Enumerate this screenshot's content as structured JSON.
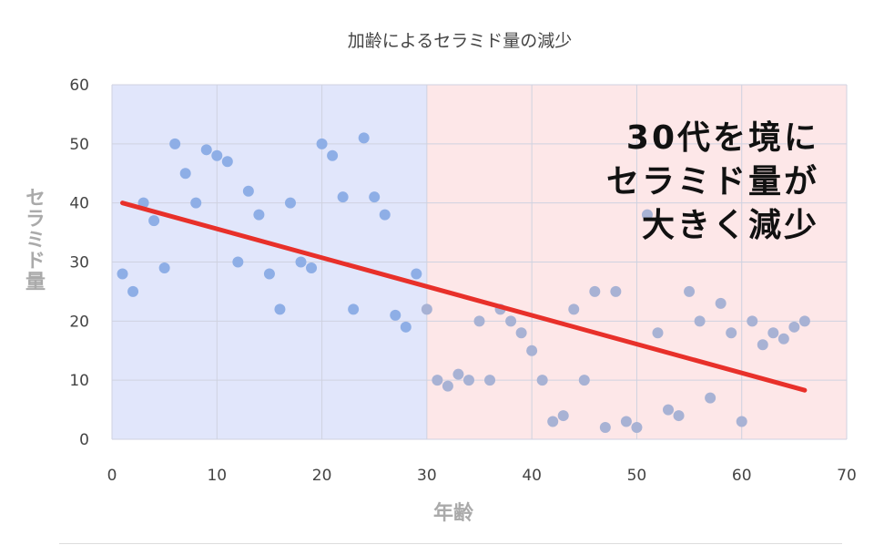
{
  "chart_data": {
    "type": "scatter",
    "title": "加齢によるセラミド量の減少",
    "xlabel": "年齢",
    "ylabel": "セラミド量",
    "xlim": [
      0,
      70
    ],
    "ylim": [
      0,
      60
    ],
    "xticks": [
      0,
      10,
      20,
      30,
      40,
      50,
      60,
      70
    ],
    "yticks": [
      0,
      10,
      20,
      30,
      40,
      50,
      60
    ],
    "grid": true,
    "x": [
      1,
      2,
      3,
      4,
      5,
      6,
      7,
      8,
      9,
      10,
      11,
      12,
      13,
      14,
      15,
      16,
      17,
      18,
      19,
      20,
      21,
      22,
      23,
      24,
      25,
      26,
      27,
      28,
      29,
      30,
      31,
      32,
      33,
      34,
      35,
      36,
      37,
      38,
      39,
      40,
      41,
      42,
      43,
      44,
      45,
      46,
      47,
      48,
      49,
      50,
      51,
      52,
      53,
      54,
      55,
      56,
      57,
      58,
      59,
      60,
      61,
      62,
      63,
      64,
      65,
      66
    ],
    "y": [
      28,
      25,
      40,
      37,
      29,
      50,
      45,
      40,
      49,
      48,
      47,
      30,
      42,
      38,
      28,
      22,
      40,
      30,
      29,
      50,
      48,
      41,
      22,
      51,
      41,
      38,
      21,
      19,
      28,
      22,
      10,
      9,
      11,
      10,
      20,
      10,
      22,
      20,
      18,
      15,
      10,
      3,
      4,
      22,
      10,
      25,
      2,
      25,
      3,
      2,
      38,
      18,
      5,
      4,
      25,
      20,
      7,
      23,
      18,
      3,
      20,
      16,
      18,
      17,
      19,
      20
    ],
    "trendline": {
      "x": [
        1,
        66
      ],
      "y": [
        40,
        8.3
      ],
      "color": "#e8302a"
    },
    "regions": [
      {
        "x": [
          0,
          30
        ],
        "color": "#e1e6fb",
        "point_color": "#8eaee6"
      },
      {
        "x": [
          30,
          70
        ],
        "color": "#fde7e8",
        "point_color": "#a8b2d4"
      }
    ],
    "annotation": [
      "30代を境に",
      "セラミド量が",
      "大きく減少"
    ]
  }
}
